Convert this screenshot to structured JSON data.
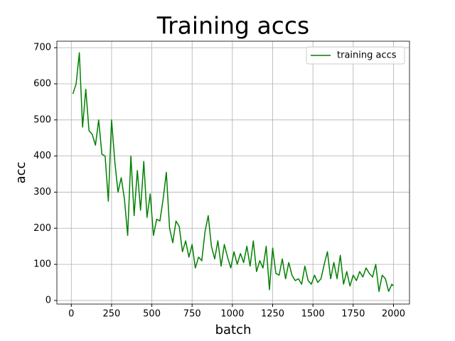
{
  "chart_data": {
    "type": "line",
    "title": "Training accs",
    "xlabel": "batch",
    "ylabel": "acc",
    "x": [
      10,
      30,
      50,
      70,
      90,
      110,
      130,
      150,
      170,
      190,
      210,
      230,
      250,
      270,
      290,
      310,
      330,
      350,
      370,
      390,
      410,
      430,
      450,
      470,
      490,
      510,
      530,
      550,
      570,
      590,
      610,
      630,
      650,
      670,
      690,
      710,
      730,
      750,
      770,
      790,
      810,
      830,
      850,
      870,
      890,
      910,
      930,
      950,
      970,
      990,
      1010,
      1030,
      1050,
      1070,
      1090,
      1110,
      1130,
      1150,
      1170,
      1190,
      1210,
      1230,
      1250,
      1270,
      1290,
      1310,
      1330,
      1350,
      1370,
      1390,
      1410,
      1430,
      1450,
      1470,
      1490,
      1510,
      1530,
      1550,
      1570,
      1590,
      1610,
      1630,
      1650,
      1670,
      1690,
      1710,
      1730,
      1750,
      1770,
      1790,
      1810,
      1830,
      1850,
      1870,
      1890,
      1910,
      1930,
      1950,
      1970,
      1990,
      2000
    ],
    "series": [
      {
        "name": "training accs",
        "color": "#008000",
        "values": [
          572,
          600,
          686,
          480,
          585,
          470,
          460,
          430,
          500,
          405,
          400,
          275,
          500,
          385,
          300,
          340,
          280,
          180,
          400,
          235,
          360,
          250,
          385,
          230,
          295,
          180,
          225,
          220,
          280,
          355,
          200,
          160,
          220,
          205,
          135,
          165,
          120,
          155,
          90,
          120,
          110,
          190,
          235,
          150,
          115,
          165,
          95,
          155,
          120,
          90,
          135,
          100,
          130,
          105,
          150,
          95,
          165,
          80,
          110,
          90,
          150,
          30,
          145,
          75,
          70,
          115,
          60,
          105,
          70,
          55,
          60,
          45,
          95,
          55,
          45,
          70,
          50,
          60,
          100,
          135,
          60,
          105,
          60,
          125,
          45,
          80,
          40,
          70,
          55,
          80,
          65,
          90,
          75,
          65,
          100,
          25,
          70,
          60,
          25,
          45,
          40
        ]
      }
    ],
    "xlim": [
      -89.5,
      2099.5
    ],
    "ylim": [
      -10,
      718
    ],
    "xticks": [
      0,
      250,
      500,
      750,
      1000,
      1250,
      1500,
      1750,
      2000
    ],
    "yticks": [
      0,
      100,
      200,
      300,
      400,
      500,
      600,
      700
    ],
    "grid": true,
    "legend": "upper right"
  }
}
